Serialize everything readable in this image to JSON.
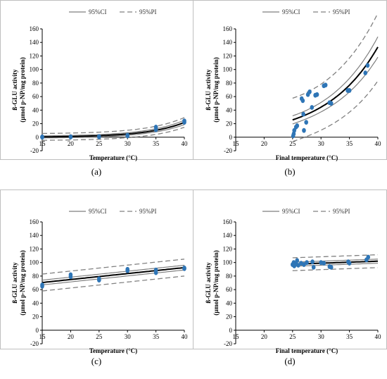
{
  "chart_data": [
    {
      "type": "scatter",
      "panel_label": "(a)",
      "xlabel": "Temperature (°C)",
      "ylabel_line1": "ß-GLU activity",
      "ylabel_line2": "(µmol p-NP/mg protein)",
      "legend": [
        "95%CI",
        "95%PI"
      ],
      "xlim": [
        15,
        40
      ],
      "ylim": [
        -20,
        160
      ],
      "xticks": [
        15,
        20,
        25,
        30,
        35,
        40
      ],
      "yticks": [
        -20,
        0,
        20,
        40,
        60,
        80,
        100,
        120,
        140,
        160
      ],
      "points": [
        {
          "x": 15,
          "y": 0
        },
        {
          "x": 15,
          "y": 0.5
        },
        {
          "x": 20,
          "y": 0.3
        },
        {
          "x": 20,
          "y": 0.8
        },
        {
          "x": 25,
          "y": 0.5
        },
        {
          "x": 25,
          "y": 1
        },
        {
          "x": 30,
          "y": 2
        },
        {
          "x": 30,
          "y": 3
        },
        {
          "x": 35,
          "y": 11
        },
        {
          "x": 35,
          "y": 15
        },
        {
          "x": 40,
          "y": 22
        },
        {
          "x": 40,
          "y": 24
        }
      ],
      "fit": {
        "model": "exp",
        "a": 0.05,
        "b": 0.152
      }
    },
    {
      "type": "scatter",
      "panel_label": "(b)",
      "xlabel": "Final temperature (°C)",
      "ylabel_line1": "ß-GLU activity",
      "ylabel_line2": "(µmol p-NP/mg protein)",
      "legend": [
        "95%CI",
        "95%PI"
      ],
      "xlim": [
        15,
        40
      ],
      "ylim": [
        -20,
        160
      ],
      "xticks": [
        15,
        20,
        25,
        30,
        35,
        40
      ],
      "yticks": [
        -20,
        0,
        20,
        40,
        60,
        80,
        100,
        120,
        140,
        160
      ],
      "points": [
        {
          "x": 25.1,
          "y": 2
        },
        {
          "x": 25.2,
          "y": 5
        },
        {
          "x": 25.3,
          "y": 10
        },
        {
          "x": 25.6,
          "y": 15
        },
        {
          "x": 25.8,
          "y": 17
        },
        {
          "x": 26.6,
          "y": 57
        },
        {
          "x": 26.8,
          "y": 54
        },
        {
          "x": 26.9,
          "y": 34
        },
        {
          "x": 27.0,
          "y": 10
        },
        {
          "x": 27.4,
          "y": 22
        },
        {
          "x": 27.7,
          "y": 63
        },
        {
          "x": 28.0,
          "y": 67
        },
        {
          "x": 28.4,
          "y": 44
        },
        {
          "x": 29.0,
          "y": 62
        },
        {
          "x": 29.3,
          "y": 63
        },
        {
          "x": 30.5,
          "y": 76
        },
        {
          "x": 30.8,
          "y": 77
        },
        {
          "x": 31.5,
          "y": 51
        },
        {
          "x": 31.8,
          "y": 50
        },
        {
          "x": 34.7,
          "y": 69
        },
        {
          "x": 35.0,
          "y": 69
        },
        {
          "x": 37.8,
          "y": 95
        },
        {
          "x": 38.2,
          "y": 106
        }
      ],
      "fit": {
        "model": "exp",
        "a": 25.6,
        "b": 0.11,
        "x0": 25
      }
    },
    {
      "type": "scatter",
      "panel_label": "(c)",
      "xlabel": "Temperature (°C)",
      "ylabel_line1": "ß-GLU activity",
      "ylabel_line2": "(µmol p-NP/mg protein)",
      "legend": [
        "95%CI",
        "95%PI"
      ],
      "xlim": [
        15,
        40
      ],
      "ylim": [
        -20,
        160
      ],
      "xticks": [
        15,
        20,
        25,
        30,
        35,
        40
      ],
      "yticks": [
        -20,
        0,
        20,
        40,
        60,
        80,
        100,
        120,
        140,
        160
      ],
      "points": [
        {
          "x": 15,
          "y": 65
        },
        {
          "x": 15,
          "y": 67
        },
        {
          "x": 20,
          "y": 79
        },
        {
          "x": 20,
          "y": 82
        },
        {
          "x": 25,
          "y": 74
        },
        {
          "x": 25,
          "y": 76
        },
        {
          "x": 30,
          "y": 88
        },
        {
          "x": 30,
          "y": 90
        },
        {
          "x": 35,
          "y": 85
        },
        {
          "x": 35,
          "y": 89
        },
        {
          "x": 40,
          "y": 91
        },
        {
          "x": 40,
          "y": 92
        }
      ],
      "fit": {
        "model": "linear",
        "intercept": 70.5,
        "slope": 0.88,
        "x0": 15
      }
    },
    {
      "type": "scatter",
      "panel_label": "(d)",
      "xlabel": "Final temperature (°C)",
      "ylabel_line1": "ß-GLU activity",
      "ylabel_line2": "(µmol p-NP/mg protein)",
      "legend": [
        "95%CI",
        "95%PI"
      ],
      "xlim": [
        15,
        40
      ],
      "ylim": [
        -20,
        160
      ],
      "xticks": [
        15,
        20,
        25,
        30,
        35,
        40
      ],
      "yticks": [
        -20,
        0,
        20,
        40,
        60,
        80,
        100,
        120,
        140,
        160
      ],
      "points": [
        {
          "x": 25.0,
          "y": 97
        },
        {
          "x": 25.2,
          "y": 100
        },
        {
          "x": 25.3,
          "y": 95
        },
        {
          "x": 25.6,
          "y": 98
        },
        {
          "x": 25.8,
          "y": 103
        },
        {
          "x": 26.0,
          "y": 96
        },
        {
          "x": 26.5,
          "y": 99
        },
        {
          "x": 27.0,
          "y": 97
        },
        {
          "x": 27.5,
          "y": 100
        },
        {
          "x": 28.5,
          "y": 101
        },
        {
          "x": 28.7,
          "y": 93
        },
        {
          "x": 30.0,
          "y": 100
        },
        {
          "x": 30.5,
          "y": 99
        },
        {
          "x": 31.5,
          "y": 94
        },
        {
          "x": 31.8,
          "y": 93
        },
        {
          "x": 34.8,
          "y": 101
        },
        {
          "x": 35.0,
          "y": 99
        },
        {
          "x": 38.0,
          "y": 104
        },
        {
          "x": 38.3,
          "y": 108
        }
      ],
      "fit": {
        "model": "linear",
        "intercept": 97.5,
        "slope": 0.3,
        "x0": 25
      }
    }
  ]
}
